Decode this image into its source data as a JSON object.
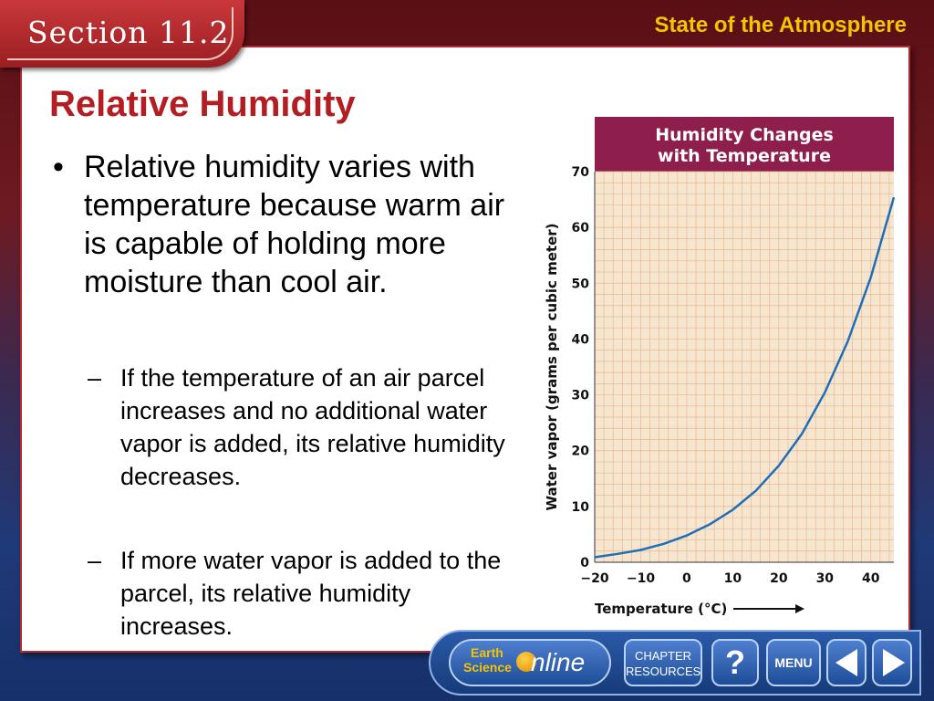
{
  "header": {
    "section_label": "Section 11.2",
    "chapter_title": "State of the Atmosphere"
  },
  "slide": {
    "title": "Relative Humidity",
    "bullet": "Relative humidity varies with temperature because warm air is capable of holding more moisture than cool air.",
    "sub_bullets": [
      "If the temperature of an air parcel increases and no additional water vapor is added, its relative humidity decreases.",
      "If more water vapor is added to the parcel, its relative humidity increases."
    ]
  },
  "chart_data": {
    "type": "line",
    "title": "Humidity Changes with Temperature",
    "xlabel": "Temperature (°C)",
    "ylabel": "Water vapor (grams per cubic meter)",
    "xlim": [
      -20,
      45
    ],
    "ylim": [
      0,
      70
    ],
    "x_ticks": [
      "−20",
      "−10",
      "0",
      "10",
      "20",
      "30",
      "40"
    ],
    "y_ticks": [
      "0",
      "10",
      "20",
      "30",
      "40",
      "50",
      "60",
      "70"
    ],
    "grid": true,
    "colors": {
      "line": "#1f6fb8",
      "title_band": "#8e1f4d",
      "plot_bg": "#f7e6cf",
      "grid": "#e6b890"
    },
    "series": [
      {
        "x": [
          -20,
          -15,
          -10,
          -5,
          0,
          5,
          10,
          15,
          20,
          25,
          30,
          35,
          40,
          45
        ],
        "values": [
          0.9,
          1.5,
          2.2,
          3.3,
          4.8,
          6.8,
          9.4,
          12.8,
          17.3,
          23.0,
          30.4,
          39.6,
          51.1,
          65.4
        ]
      }
    ]
  },
  "nav": {
    "earth_line1": "Earth",
    "earth_line2": "Science",
    "online": "nline",
    "chapter_resources": "CHAPTER RESOURCES",
    "help": "?",
    "menu": "MENU",
    "prev_icon": "left-arrow-icon",
    "next_icon": "right-arrow-icon"
  }
}
